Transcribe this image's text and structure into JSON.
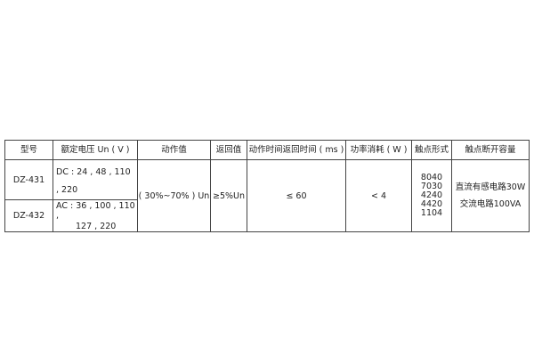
{
  "headers": [
    "型号",
    "额定电压 Un ( V )",
    "动作值",
    "返回值",
    "动作时间返回时间 ( ms )",
    "功率消耗 ( W )",
    "触点形式",
    "触点断开容量"
  ],
  "rows": [
    {
      "model": "DZ-431",
      "voltage": "DC : 24 , 48 , 110 , 220"
    },
    {
      "model": "DZ-432",
      "voltage_line1": "AC : 36 , 100 , 110 ,",
      "voltage_line2": "127 , 220"
    }
  ],
  "shared": {
    "action_value": "( 30%~70% ) Un",
    "return_value": "≥5%Un",
    "time": "≤ 60",
    "power": "< 4",
    "contacts": [
      "8040",
      "7030",
      "4240",
      "4420",
      "1104"
    ],
    "capacity_dc": "直流有感电路30W",
    "capacity_ac": "交流电路100VA"
  }
}
